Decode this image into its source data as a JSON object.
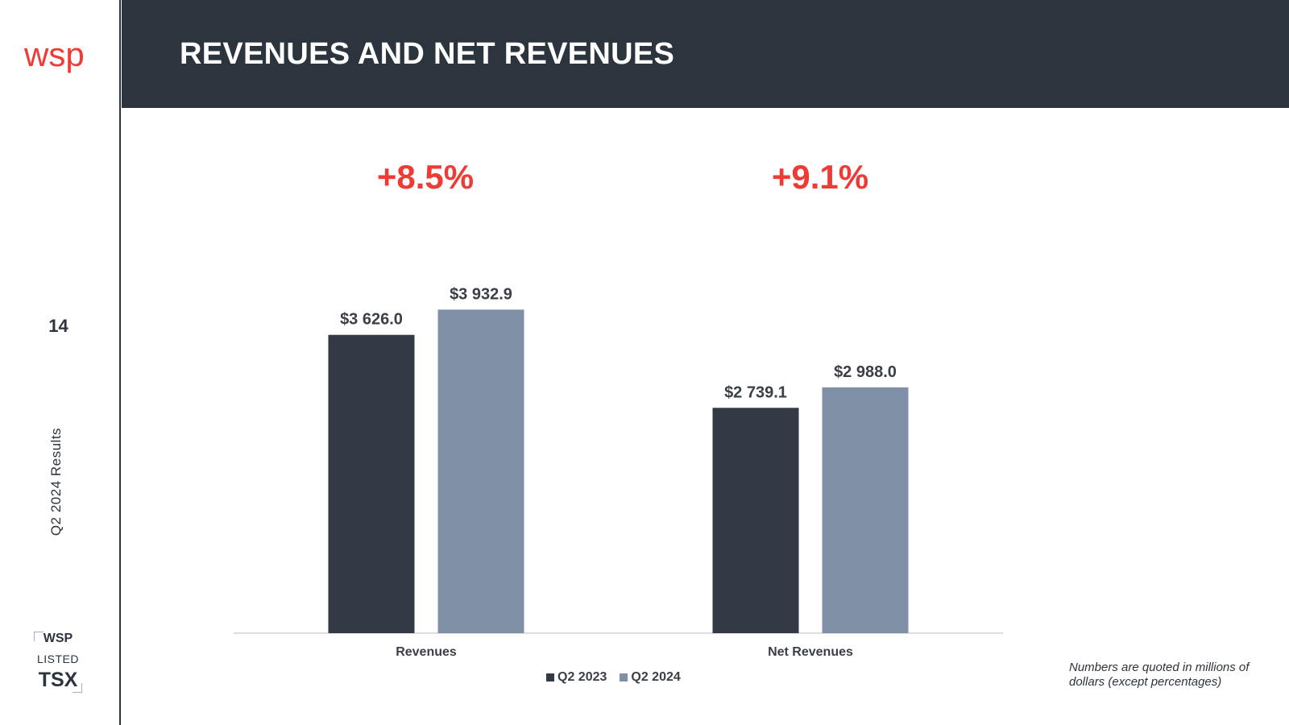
{
  "brand": {
    "logo_text": "wsp",
    "accent": "#ee3b36",
    "dark": "#2c343d"
  },
  "sidebar": {
    "page_number": "14",
    "vertical_label": "Q2 2024 Results",
    "badge": {
      "line1": "WSP",
      "line2": "LISTED",
      "line3": "TSX"
    }
  },
  "header": {
    "title": "REVENUES AND NET REVENUES"
  },
  "growth_labels": [
    "+8.5%",
    "+9.1%"
  ],
  "footnote": "Numbers are quoted in millions of dollars (except percentages)",
  "chart_data": {
    "type": "bar",
    "title": "REVENUES AND NET REVENUES",
    "categories": [
      "Revenues",
      "Net Revenues"
    ],
    "series": [
      {
        "name": "Q2 2023",
        "values": [
          3626.0,
          2739.1
        ],
        "labels": [
          "$3 626.0",
          "$2 739.1"
        ],
        "color": "#333a46"
      },
      {
        "name": "Q2 2024",
        "values": [
          3932.9,
          2988.0
        ],
        "labels": [
          "$3 932.9",
          "$2 988.0"
        ],
        "color": "#7f8fa5"
      }
    ],
    "ylim": [
      0,
      4700
    ],
    "legend": "bottom",
    "grid": false
  }
}
